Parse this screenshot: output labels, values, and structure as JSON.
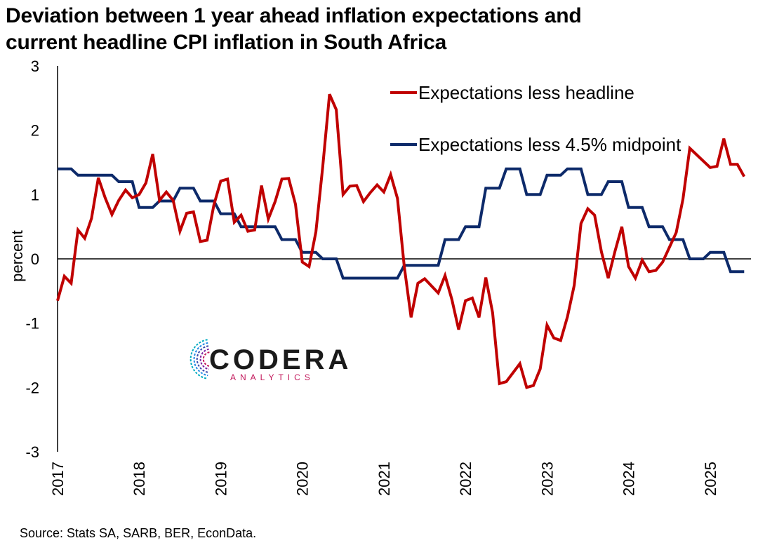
{
  "title_line1": "Deviation between 1 year ahead inflation expectations and",
  "title_line2": "current headline CPI inflation in South Africa",
  "source": "Source: Stats SA, SARB, BER, EconData.",
  "logo": {
    "main": "CODERA",
    "sub": "ANALYTICS"
  },
  "chart_data": {
    "type": "line",
    "ylabel": "percent",
    "ylim": [
      -3,
      3
    ],
    "yticks": [
      3,
      2,
      1,
      0,
      -1,
      -2,
      -3
    ],
    "xlim": [
      "2017-01",
      "2025-07"
    ],
    "xticks": [
      "2017",
      "2018",
      "2019",
      "2020",
      "2021",
      "2022",
      "2023",
      "2024",
      "2025"
    ],
    "legend_position": "top-right",
    "grid": false,
    "zero_line": true,
    "series": [
      {
        "name": "Expectations less headline",
        "color": "#c00000",
        "x": [
          "2017-01",
          "2017-02",
          "2017-03",
          "2017-04",
          "2017-05",
          "2017-06",
          "2017-07",
          "2017-08",
          "2017-09",
          "2017-10",
          "2017-11",
          "2017-12",
          "2018-01",
          "2018-02",
          "2018-03",
          "2018-04",
          "2018-05",
          "2018-06",
          "2018-07",
          "2018-08",
          "2018-09",
          "2018-10",
          "2018-11",
          "2018-12",
          "2019-01",
          "2019-02",
          "2019-03",
          "2019-04",
          "2019-05",
          "2019-06",
          "2019-07",
          "2019-08",
          "2019-09",
          "2019-10",
          "2019-11",
          "2019-12",
          "2020-01",
          "2020-02",
          "2020-03",
          "2020-04",
          "2020-05",
          "2020-06",
          "2020-07",
          "2020-08",
          "2020-09",
          "2020-10",
          "2020-11",
          "2020-12",
          "2021-01",
          "2021-02",
          "2021-03",
          "2021-04",
          "2021-05",
          "2021-06",
          "2021-07",
          "2021-08",
          "2021-09",
          "2021-10",
          "2021-11",
          "2021-12",
          "2022-01",
          "2022-02",
          "2022-03",
          "2022-04",
          "2022-05",
          "2022-06",
          "2022-07",
          "2022-08",
          "2022-09",
          "2022-10",
          "2022-11",
          "2022-12",
          "2023-01",
          "2023-02",
          "2023-03",
          "2023-04",
          "2023-05",
          "2023-06",
          "2023-07",
          "2023-08",
          "2023-09",
          "2023-10",
          "2023-11",
          "2023-12",
          "2024-01",
          "2024-02",
          "2024-03",
          "2024-04",
          "2024-05",
          "2024-06",
          "2024-07",
          "2024-08",
          "2024-09",
          "2024-10",
          "2024-11",
          "2024-12",
          "2025-01",
          "2025-02",
          "2025-03",
          "2025-04",
          "2025-05",
          "2025-06"
        ],
        "values": [
          -0.65,
          -0.27,
          -0.38,
          0.45,
          0.32,
          0.63,
          1.26,
          0.95,
          0.69,
          0.91,
          1.07,
          0.95,
          1.0,
          1.18,
          1.63,
          0.91,
          1.04,
          0.91,
          0.43,
          0.71,
          0.73,
          0.27,
          0.29,
          0.84,
          1.21,
          1.24,
          0.57,
          0.68,
          0.43,
          0.45,
          1.14,
          0.62,
          0.89,
          1.24,
          1.25,
          0.85,
          -0.05,
          -0.12,
          0.42,
          1.43,
          2.56,
          2.32,
          1.0,
          1.13,
          1.14,
          0.89,
          1.03,
          1.15,
          1.04,
          1.31,
          0.94,
          -0.12,
          -0.91,
          -0.38,
          -0.31,
          -0.42,
          -0.53,
          -0.26,
          -0.63,
          -1.1,
          -0.65,
          -0.61,
          -0.91,
          -0.29,
          -0.84,
          -1.94,
          -1.91,
          -1.77,
          -1.63,
          -2.0,
          -1.97,
          -1.71,
          -1.03,
          -1.23,
          -1.27,
          -0.9,
          -0.41,
          0.55,
          0.78,
          0.68,
          0.11,
          -0.3,
          0.12,
          0.5,
          -0.12,
          -0.3,
          -0.02,
          -0.2,
          -0.18,
          -0.05,
          0.18,
          0.41,
          0.93,
          1.72,
          1.62,
          1.52,
          1.42,
          1.44,
          1.87,
          1.47,
          1.47,
          1.28
        ]
      },
      {
        "name": "Expectations less 4.5% midpoint",
        "color": "#0d2a6a",
        "x": [
          "2017-01",
          "2017-02",
          "2017-03",
          "2017-04",
          "2017-05",
          "2017-06",
          "2017-07",
          "2017-08",
          "2017-09",
          "2017-10",
          "2017-11",
          "2017-12",
          "2018-01",
          "2018-02",
          "2018-03",
          "2018-04",
          "2018-05",
          "2018-06",
          "2018-07",
          "2018-08",
          "2018-09",
          "2018-10",
          "2018-11",
          "2018-12",
          "2019-01",
          "2019-02",
          "2019-03",
          "2019-04",
          "2019-05",
          "2019-06",
          "2019-07",
          "2019-08",
          "2019-09",
          "2019-10",
          "2019-11",
          "2019-12",
          "2020-01",
          "2020-02",
          "2020-03",
          "2020-04",
          "2020-05",
          "2020-06",
          "2020-07",
          "2020-08",
          "2020-09",
          "2020-10",
          "2020-11",
          "2020-12",
          "2021-01",
          "2021-02",
          "2021-03",
          "2021-04",
          "2021-05",
          "2021-06",
          "2021-07",
          "2021-08",
          "2021-09",
          "2021-10",
          "2021-11",
          "2021-12",
          "2022-01",
          "2022-02",
          "2022-03",
          "2022-04",
          "2022-05",
          "2022-06",
          "2022-07",
          "2022-08",
          "2022-09",
          "2022-10",
          "2022-11",
          "2022-12",
          "2023-01",
          "2023-02",
          "2023-03",
          "2023-04",
          "2023-05",
          "2023-06",
          "2023-07",
          "2023-08",
          "2023-09",
          "2023-10",
          "2023-11",
          "2023-12",
          "2024-01",
          "2024-02",
          "2024-03",
          "2024-04",
          "2024-05",
          "2024-06",
          "2024-07",
          "2024-08",
          "2024-09",
          "2024-10",
          "2024-11",
          "2024-12",
          "2025-01",
          "2025-02",
          "2025-03",
          "2025-04",
          "2025-05",
          "2025-06"
        ],
        "values": [
          1.4,
          1.4,
          1.4,
          1.3,
          1.3,
          1.3,
          1.3,
          1.3,
          1.3,
          1.2,
          1.2,
          1.2,
          0.8,
          0.8,
          0.8,
          0.9,
          0.9,
          0.9,
          1.1,
          1.1,
          1.1,
          0.9,
          0.9,
          0.9,
          0.7,
          0.7,
          0.7,
          0.5,
          0.5,
          0.5,
          0.5,
          0.5,
          0.5,
          0.3,
          0.3,
          0.3,
          0.1,
          0.1,
          0.1,
          0.0,
          0.0,
          0.0,
          -0.3,
          -0.3,
          -0.3,
          -0.3,
          -0.3,
          -0.3,
          -0.3,
          -0.3,
          -0.3,
          -0.1,
          -0.1,
          -0.1,
          -0.1,
          -0.1,
          -0.1,
          0.3,
          0.3,
          0.3,
          0.5,
          0.5,
          0.5,
          1.1,
          1.1,
          1.1,
          1.4,
          1.4,
          1.4,
          1.0,
          1.0,
          1.0,
          1.3,
          1.3,
          1.3,
          1.4,
          1.4,
          1.4,
          1.0,
          1.0,
          1.0,
          1.2,
          1.2,
          1.2,
          0.8,
          0.8,
          0.8,
          0.5,
          0.5,
          0.5,
          0.3,
          0.3,
          0.3,
          0.0,
          0.0,
          0.0,
          0.1,
          0.1,
          0.1,
          -0.2,
          -0.2,
          -0.2
        ]
      }
    ]
  }
}
